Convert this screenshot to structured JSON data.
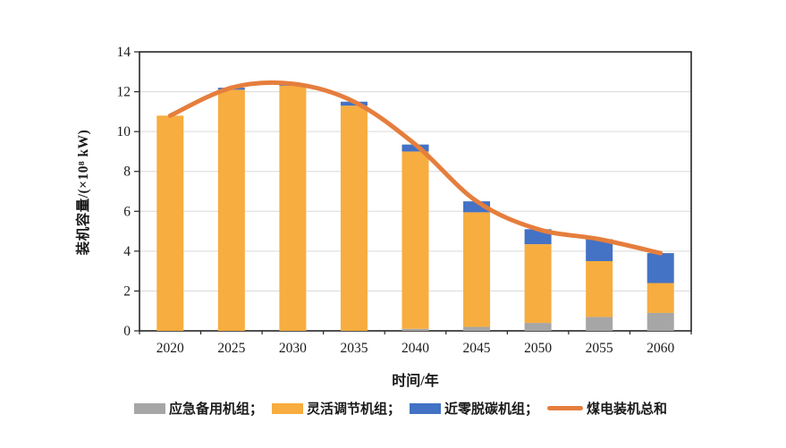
{
  "chart_data": {
    "type": "bar",
    "subtype": "stacked-bars-with-total-line",
    "title": "",
    "categories": [
      "2020",
      "2025",
      "2030",
      "2035",
      "2040",
      "2045",
      "2050",
      "2055",
      "2060"
    ],
    "series": [
      {
        "name": "应急备用机组",
        "type": "bar",
        "color": "#A6A6A6",
        "values": [
          0,
          0,
          0,
          0,
          0.1,
          0.2,
          0.4,
          0.7,
          0.9
        ]
      },
      {
        "name": "灵活调节机组",
        "type": "bar",
        "color": "#F7AD3F",
        "values": [
          10.8,
          12.1,
          12.3,
          11.3,
          8.9,
          5.75,
          3.95,
          2.8,
          1.5
        ]
      },
      {
        "name": "近零脱碳机组",
        "type": "bar",
        "color": "#4472C4",
        "values": [
          0,
          0.1,
          0.1,
          0.2,
          0.35,
          0.55,
          0.75,
          1.1,
          1.5
        ]
      },
      {
        "name": "煤电装机总和",
        "type": "line",
        "color": "#E57E3D",
        "values": [
          10.8,
          12.2,
          12.4,
          11.5,
          9.35,
          6.5,
          5.1,
          4.6,
          3.9
        ]
      }
    ],
    "xlabel": "时间/年",
    "ylabel": "装机容量/(×10⁸ kW)",
    "ylim": [
      0,
      14
    ],
    "y_ticks": [
      0,
      2,
      4,
      6,
      8,
      10,
      12,
      14
    ],
    "grid": "horizontal",
    "gridline_color": "#D9D9D9",
    "axis_border_color": "#262626",
    "legend_position": "bottom"
  },
  "legend": {
    "items": [
      {
        "label": "应急备用机组；",
        "swatch": "rect",
        "color": "#A6A6A6"
      },
      {
        "label": "灵活调节机组；",
        "swatch": "rect",
        "color": "#F7AD3F"
      },
      {
        "label": "近零脱碳机组；",
        "swatch": "rect",
        "color": "#4472C4"
      },
      {
        "label": "煤电装机总和",
        "swatch": "line",
        "color": "#E57E3D"
      }
    ]
  },
  "axes": {
    "x_title": "时间/年",
    "y_title": "装机容量/(×10⁸ kW)"
  }
}
